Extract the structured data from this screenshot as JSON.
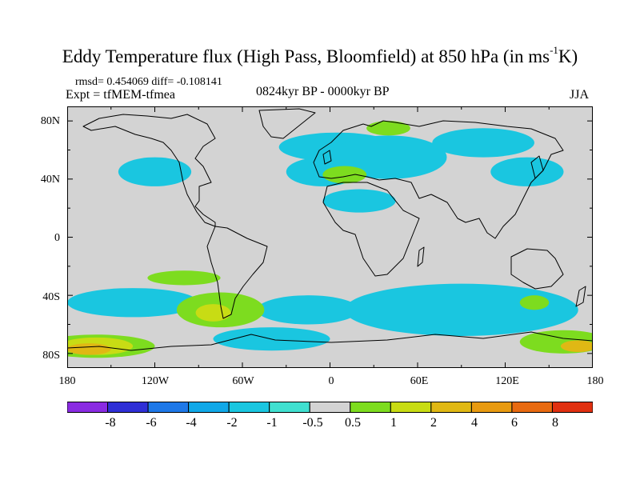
{
  "title": {
    "main": "Eddy Temperature flux (High Pass, Bloomfield) at 850 hPa (in ms",
    "sup": "-1",
    "tail": "K)"
  },
  "subtitle": {
    "stats": "rmsd= 0.454069 diff= -0.108141",
    "expt": "Expt = tfMEM-tfmea",
    "period": "0824kyr BP - 0000kyr BP",
    "season": "JJA"
  },
  "axes": {
    "lat_labels": [
      "80N",
      "40N",
      "0",
      "40S",
      "80S"
    ],
    "lon_labels": [
      "180",
      "120W",
      "60W",
      "0",
      "60E",
      "120E",
      "180"
    ]
  },
  "colorbar": {
    "colors": [
      "#8a2be2",
      "#2f2fd6",
      "#1e78e8",
      "#10a8e8",
      "#1ac6e0",
      "#40e0d0",
      "#d3d3d3",
      "#7ddc1f",
      "#c8dc14",
      "#e0b814",
      "#e89a10",
      "#e86a10",
      "#e03010"
    ],
    "labels": [
      "-8",
      "-6",
      "-4",
      "-2",
      "-1",
      "-0.5",
      "0.5",
      "1",
      "2",
      "4",
      "6",
      "8"
    ]
  },
  "chart_data": {
    "type": "heatmap",
    "title": "Eddy Temperature flux (High Pass, Bloomfield) at 850 hPa (in ms-1K)",
    "units": "m s-1 K",
    "projection": "cylindrical equidistant",
    "xlim": [
      -180,
      180
    ],
    "ylim": [
      -90,
      90
    ],
    "contour_levels": [
      -8,
      -6,
      -4,
      -2,
      -1,
      -0.5,
      0.5,
      1,
      2,
      4,
      6,
      8
    ],
    "rmsd": 0.454069,
    "diff": -0.108141,
    "regions": [
      {
        "level": "-1",
        "center": [
          -120,
          45
        ],
        "extent": [
          25,
          10
        ]
      },
      {
        "level": "-1",
        "center": [
          5,
          62
        ],
        "extent": [
          40,
          10
        ]
      },
      {
        "level": "-1",
        "center": [
          40,
          55
        ],
        "extent": [
          40,
          15
        ]
      },
      {
        "level": "-1",
        "center": [
          105,
          65
        ],
        "extent": [
          35,
          10
        ]
      },
      {
        "level": "-1",
        "center": [
          20,
          25
        ],
        "extent": [
          25,
          8
        ]
      },
      {
        "level": "-1",
        "center": [
          -5,
          45
        ],
        "extent": [
          25,
          10
        ]
      },
      {
        "level": "-1",
        "center": [
          135,
          45
        ],
        "extent": [
          25,
          10
        ]
      },
      {
        "level": "-1",
        "center": [
          -135,
          -45
        ],
        "extent": [
          45,
          10
        ]
      },
      {
        "level": "-1",
        "center": [
          -15,
          -50
        ],
        "extent": [
          35,
          10
        ]
      },
      {
        "level": "-1",
        "center": [
          90,
          -50
        ],
        "extent": [
          80,
          18
        ]
      },
      {
        "level": "-1",
        "center": [
          -40,
          -70
        ],
        "extent": [
          40,
          8
        ]
      },
      {
        "level": "0.5",
        "center": [
          10,
          43
        ],
        "extent": [
          15,
          6
        ]
      },
      {
        "level": "0.5",
        "center": [
          40,
          75
        ],
        "extent": [
          15,
          5
        ]
      },
      {
        "level": "0.5",
        "center": [
          -100,
          -28
        ],
        "extent": [
          25,
          5
        ]
      },
      {
        "level": "0.5",
        "center": [
          -75,
          -50
        ],
        "extent": [
          30,
          12
        ]
      },
      {
        "level": "0.5",
        "center": [
          -160,
          -75
        ],
        "extent": [
          40,
          8
        ]
      },
      {
        "level": "0.5",
        "center": [
          160,
          -72
        ],
        "extent": [
          30,
          8
        ]
      },
      {
        "level": "0.5",
        "center": [
          140,
          -45
        ],
        "extent": [
          10,
          5
        ]
      },
      {
        "level": "1",
        "center": [
          -80,
          -52
        ],
        "extent": [
          12,
          6
        ]
      },
      {
        "level": "1",
        "center": [
          -160,
          -75
        ],
        "extent": [
          25,
          6
        ]
      },
      {
        "level": "2",
        "center": [
          -165,
          -77
        ],
        "extent": [
          15,
          4
        ]
      },
      {
        "level": "2",
        "center": [
          170,
          -75
        ],
        "extent": [
          12,
          4
        ]
      }
    ]
  }
}
